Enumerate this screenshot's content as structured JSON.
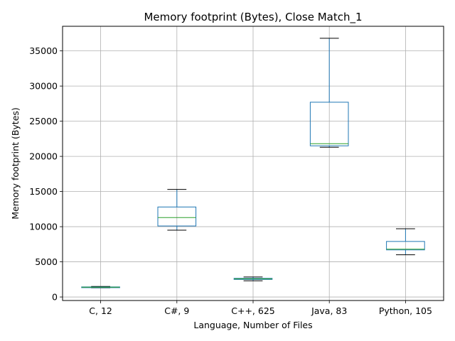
{
  "chart_data": {
    "type": "box",
    "title": "Memory footprint (Bytes), Close Match_1",
    "xlabel": "Language, Number of Files",
    "ylabel": "Memory footprint (Bytes)",
    "ylim": [
      -500,
      38500
    ],
    "yticks": [
      0,
      5000,
      10000,
      15000,
      20000,
      25000,
      30000,
      35000
    ],
    "grid": true,
    "box_color": "#1f77b4",
    "median_color": "#2ca02c",
    "whisker_cap_color": "#000000",
    "categories": [
      "C, 12",
      "C#, 9",
      "C++, 625",
      "Java, 83",
      "Python, 105"
    ],
    "boxes": [
      {
        "label": "C, 12",
        "min": 1300,
        "q1": 1350,
        "median": 1400,
        "q3": 1430,
        "max": 1500
      },
      {
        "label": "C#, 9",
        "min": 9500,
        "q1": 10100,
        "median": 11300,
        "q3": 12800,
        "max": 15300
      },
      {
        "label": "C++, 625",
        "min": 2300,
        "q1": 2500,
        "median": 2580,
        "q3": 2650,
        "max": 2850
      },
      {
        "label": "Java, 83",
        "min": 21300,
        "q1": 21500,
        "median": 21800,
        "q3": 27700,
        "max": 36800
      },
      {
        "label": "Python, 105",
        "min": 6000,
        "q1": 6700,
        "median": 6800,
        "q3": 7900,
        "max": 9700
      }
    ]
  }
}
